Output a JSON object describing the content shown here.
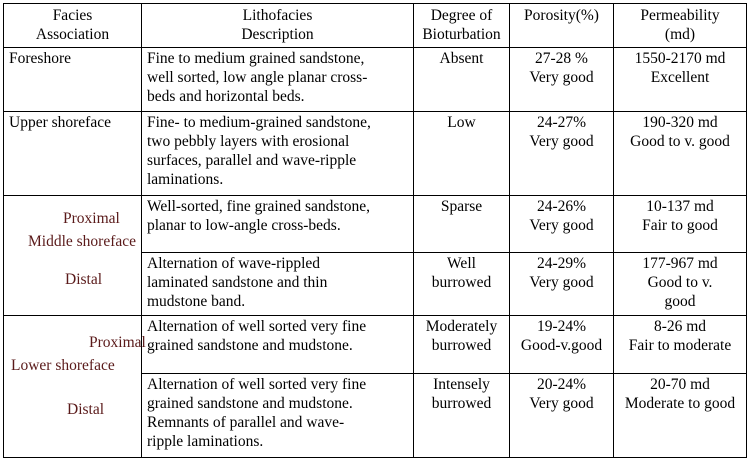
{
  "headers": {
    "facies": "Facies\nAssociation",
    "litho": "Lithofacies\nDescription",
    "bio": "Degree of\nBioturbation",
    "poro": "Porosity(%)",
    "perm": "Permeability\n(md)"
  },
  "rows": [
    {
      "assoc": "Foreshore",
      "litho": "Fine to medium grained sandstone,\nwell sorted, low angle planar cross-\nbeds and horizontal beds.",
      "bio": "Absent",
      "poro": "27-28 %\nVery good",
      "perm": "1550-2170 md\nExcellent"
    },
    {
      "assoc": "Upper shoreface",
      "litho": "Fine- to medium-grained sandstone,\ntwo pebbly layers with erosional\nsurfaces, parallel and wave-ripple\nlaminations.",
      "bio": "Low",
      "poro": "24-27%\nVery good",
      "perm": "190-320 md\nGood to v. good"
    },
    {
      "litho": "Well-sorted, fine grained sandstone,\nplanar to low-angle cross-beds.",
      "bio": "Sparse",
      "poro": "24-26%\nVery good",
      "perm": "10-137  md\nFair to good"
    },
    {
      "litho": "Alternation of wave-rippled\nlaminated sandstone and thin\nmudstone band.",
      "bio": "Well\nburrowed",
      "poro": "24-29%\nVery good",
      "perm": "177-967 md\nGood to  v.\ngood"
    },
    {
      "litho": "Alternation of well sorted very fine\ngrained sandstone and mudstone.",
      "bio": "Moderately\nburrowed",
      "poro": "19-24%\nGood-v.good",
      "perm": "8-26 md\nFair to moderate"
    },
    {
      "litho": "Alternation of well sorted very fine\ngrained sandstone and mudstone.\nRemnants of parallel and wave-\nripple laminations.",
      "bio": "Intensely\nburrowed",
      "poro": "20-24%\nVery good",
      "perm": "20-70 md\nModerate to good"
    }
  ],
  "middle_shoreface": {
    "proximal": "Proximal",
    "name": "Middle\nshoreface",
    "distal": "Distal"
  },
  "lower_shoreface": {
    "proximal": "Proximal",
    "name": "Lower\nshoreface",
    "distal": "Distal"
  }
}
